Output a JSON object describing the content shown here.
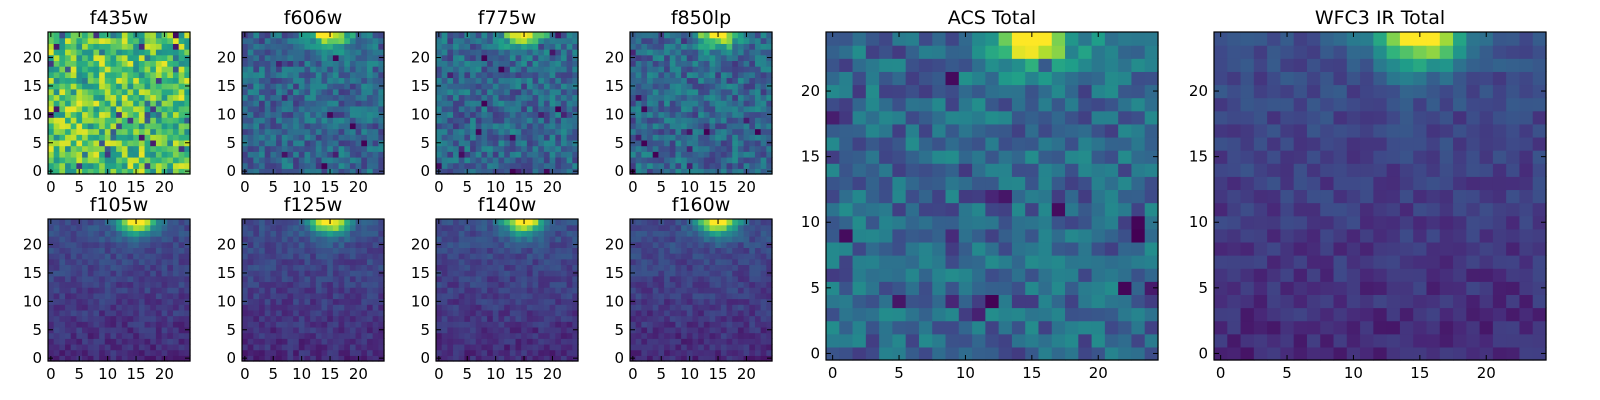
{
  "chart_data": [
    {
      "type": "heatmap",
      "title": "f435w",
      "grid_size": 25,
      "pattern": "uniform-noisy",
      "xticks": [
        0,
        5,
        10,
        15,
        20
      ],
      "yticks": [
        0,
        5,
        10,
        15,
        20
      ],
      "xlim": [
        0,
        24
      ],
      "ylim": [
        0,
        24
      ],
      "colormap": "viridis",
      "seed": 11
    },
    {
      "type": "heatmap",
      "title": "f606w",
      "grid_size": 25,
      "pattern": "source-top-center",
      "xticks": [
        0,
        5,
        10,
        15,
        20
      ],
      "yticks": [
        0,
        5,
        10,
        15,
        20
      ],
      "xlim": [
        0,
        24
      ],
      "ylim": [
        0,
        24
      ],
      "colormap": "viridis",
      "seed": 23
    },
    {
      "type": "heatmap",
      "title": "f775w",
      "grid_size": 25,
      "pattern": "source-top-center",
      "xticks": [
        0,
        5,
        10,
        15,
        20
      ],
      "yticks": [
        0,
        5,
        10,
        15,
        20
      ],
      "xlim": [
        0,
        24
      ],
      "ylim": [
        0,
        24
      ],
      "colormap": "viridis",
      "seed": 37
    },
    {
      "type": "heatmap",
      "title": "f850lp",
      "grid_size": 25,
      "pattern": "source-top-center",
      "xticks": [
        0,
        5,
        10,
        15,
        20
      ],
      "yticks": [
        0,
        5,
        10,
        15,
        20
      ],
      "xlim": [
        0,
        24
      ],
      "ylim": [
        0,
        24
      ],
      "colormap": "viridis",
      "seed": 41
    },
    {
      "type": "heatmap",
      "title": "f105w",
      "grid_size": 25,
      "pattern": "source-top-center-smooth",
      "xticks": [
        0,
        5,
        10,
        15,
        20
      ],
      "yticks": [
        0,
        5,
        10,
        15,
        20
      ],
      "xlim": [
        0,
        24
      ],
      "ylim": [
        0,
        24
      ],
      "colormap": "viridis",
      "seed": 53
    },
    {
      "type": "heatmap",
      "title": "f125w",
      "grid_size": 25,
      "pattern": "source-top-center-smooth",
      "xticks": [
        0,
        5,
        10,
        15,
        20
      ],
      "yticks": [
        0,
        5,
        10,
        15,
        20
      ],
      "xlim": [
        0,
        24
      ],
      "ylim": [
        0,
        24
      ],
      "colormap": "viridis",
      "seed": 67
    },
    {
      "type": "heatmap",
      "title": "f140w",
      "grid_size": 25,
      "pattern": "source-top-center-smooth",
      "xticks": [
        0,
        5,
        10,
        15,
        20
      ],
      "yticks": [
        0,
        5,
        10,
        15,
        20
      ],
      "xlim": [
        0,
        24
      ],
      "ylim": [
        0,
        24
      ],
      "colormap": "viridis",
      "seed": 71
    },
    {
      "type": "heatmap",
      "title": "f160w",
      "grid_size": 25,
      "pattern": "source-top-center-smooth",
      "xticks": [
        0,
        5,
        10,
        15,
        20
      ],
      "yticks": [
        0,
        5,
        10,
        15,
        20
      ],
      "xlim": [
        0,
        24
      ],
      "ylim": [
        0,
        24
      ],
      "colormap": "viridis",
      "seed": 83
    },
    {
      "type": "heatmap",
      "title": "ACS Total",
      "grid_size": 25,
      "pattern": "source-top-center",
      "xticks": [
        0,
        5,
        10,
        15,
        20
      ],
      "yticks": [
        0,
        5,
        10,
        15,
        20
      ],
      "xlim": [
        0,
        24
      ],
      "ylim": [
        0,
        24
      ],
      "colormap": "viridis",
      "seed": 97
    },
    {
      "type": "heatmap",
      "title": "WFC3 IR Total",
      "grid_size": 25,
      "pattern": "source-top-center-smooth",
      "xticks": [
        0,
        5,
        10,
        15,
        20
      ],
      "yticks": [
        0,
        5,
        10,
        15,
        20
      ],
      "xlim": [
        0,
        24
      ],
      "ylim": [
        0,
        24
      ],
      "colormap": "viridis",
      "seed": 103
    }
  ]
}
